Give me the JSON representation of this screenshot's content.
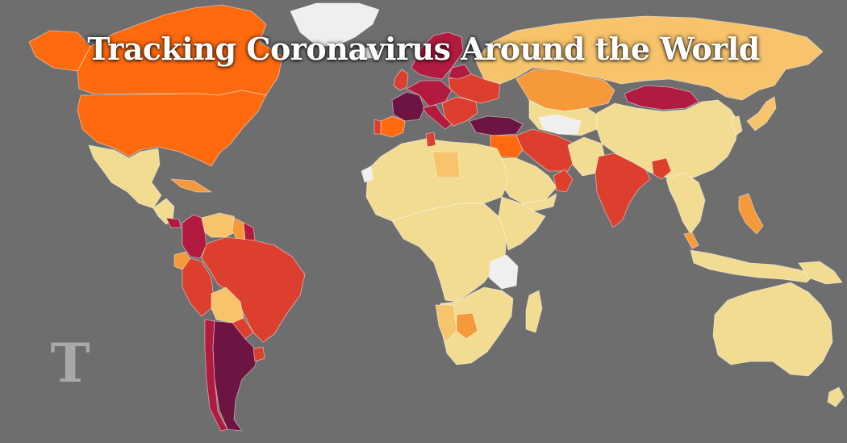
{
  "title": "Tracking Coronavirus Around the World",
  "logo": {
    "glyph": "T",
    "name": "nyt-t-logo"
  },
  "colors": {
    "background": "#6e6e6e",
    "title": "#ffffff",
    "logo": "#a9a9a9",
    "no_data": "#efefef",
    "scale": [
      "#f1dc92",
      "#f7c36b",
      "#f5993a",
      "#ff6a0e",
      "#dc3f2d",
      "#b21a3f",
      "#6d1442"
    ]
  },
  "regions": [
    {
      "name": "canada",
      "level": 3
    },
    {
      "name": "alaska",
      "level": 3
    },
    {
      "name": "united-states",
      "level": 3
    },
    {
      "name": "greenland",
      "level": null
    },
    {
      "name": "mexico",
      "level": 0
    },
    {
      "name": "central-america",
      "level": 0
    },
    {
      "name": "panama",
      "level": 5
    },
    {
      "name": "cuba",
      "level": 2
    },
    {
      "name": "colombia",
      "level": 5
    },
    {
      "name": "venezuela",
      "level": 1
    },
    {
      "name": "guyana",
      "level": 2
    },
    {
      "name": "suriname",
      "level": 5
    },
    {
      "name": "ecuador",
      "level": 2
    },
    {
      "name": "peru",
      "level": 4
    },
    {
      "name": "brazil",
      "level": 4
    },
    {
      "name": "bolivia",
      "level": 1
    },
    {
      "name": "paraguay",
      "level": 4
    },
    {
      "name": "chile",
      "level": 5
    },
    {
      "name": "argentina",
      "level": 6
    },
    {
      "name": "uruguay",
      "level": 4
    },
    {
      "name": "iceland",
      "level": null
    },
    {
      "name": "scandinavia",
      "level": 5
    },
    {
      "name": "united-kingdom",
      "level": 4
    },
    {
      "name": "france",
      "level": 6
    },
    {
      "name": "spain",
      "level": 3
    },
    {
      "name": "portugal",
      "level": 4
    },
    {
      "name": "central-europe",
      "level": 5
    },
    {
      "name": "italy",
      "level": 5
    },
    {
      "name": "balkans",
      "level": 4
    },
    {
      "name": "eastern-europe",
      "level": 4
    },
    {
      "name": "baltics",
      "level": 5
    },
    {
      "name": "turkey",
      "level": 6
    },
    {
      "name": "russia",
      "level": 1
    },
    {
      "name": "kazakhstan",
      "level": 2
    },
    {
      "name": "mongolia",
      "level": 5
    },
    {
      "name": "china",
      "level": 0
    },
    {
      "name": "korea-japan",
      "level": 0
    },
    {
      "name": "japan",
      "level": 1
    },
    {
      "name": "central-asia",
      "level": 0
    },
    {
      "name": "caucasus",
      "level": null
    },
    {
      "name": "iran",
      "level": 4
    },
    {
      "name": "iraq-syria",
      "level": 3
    },
    {
      "name": "saudi-arabia",
      "level": 0
    },
    {
      "name": "oman-uae",
      "level": 4
    },
    {
      "name": "yemen",
      "level": 0
    },
    {
      "name": "afghanistan-pakistan",
      "level": 0
    },
    {
      "name": "india",
      "level": 4
    },
    {
      "name": "bangladesh",
      "level": 4
    },
    {
      "name": "southeast-asia",
      "level": 0
    },
    {
      "name": "malaysia",
      "level": 2
    },
    {
      "name": "philippines",
      "level": 2
    },
    {
      "name": "indonesia",
      "level": 0
    },
    {
      "name": "north-africa",
      "level": 0
    },
    {
      "name": "morocco-west",
      "level": null
    },
    {
      "name": "libya",
      "level": 1
    },
    {
      "name": "tunisia",
      "level": 4
    },
    {
      "name": "africa-central",
      "level": 0
    },
    {
      "name": "horn-of-africa",
      "level": 0
    },
    {
      "name": "tanzania",
      "level": null
    },
    {
      "name": "southern-africa",
      "level": 0
    },
    {
      "name": "namibia",
      "level": 1
    },
    {
      "name": "botswana",
      "level": 2
    },
    {
      "name": "madagascar",
      "level": 0
    },
    {
      "name": "australia",
      "level": 0
    },
    {
      "name": "new-zealand",
      "level": 0
    },
    {
      "name": "papua-new-guinea",
      "level": 0
    }
  ]
}
